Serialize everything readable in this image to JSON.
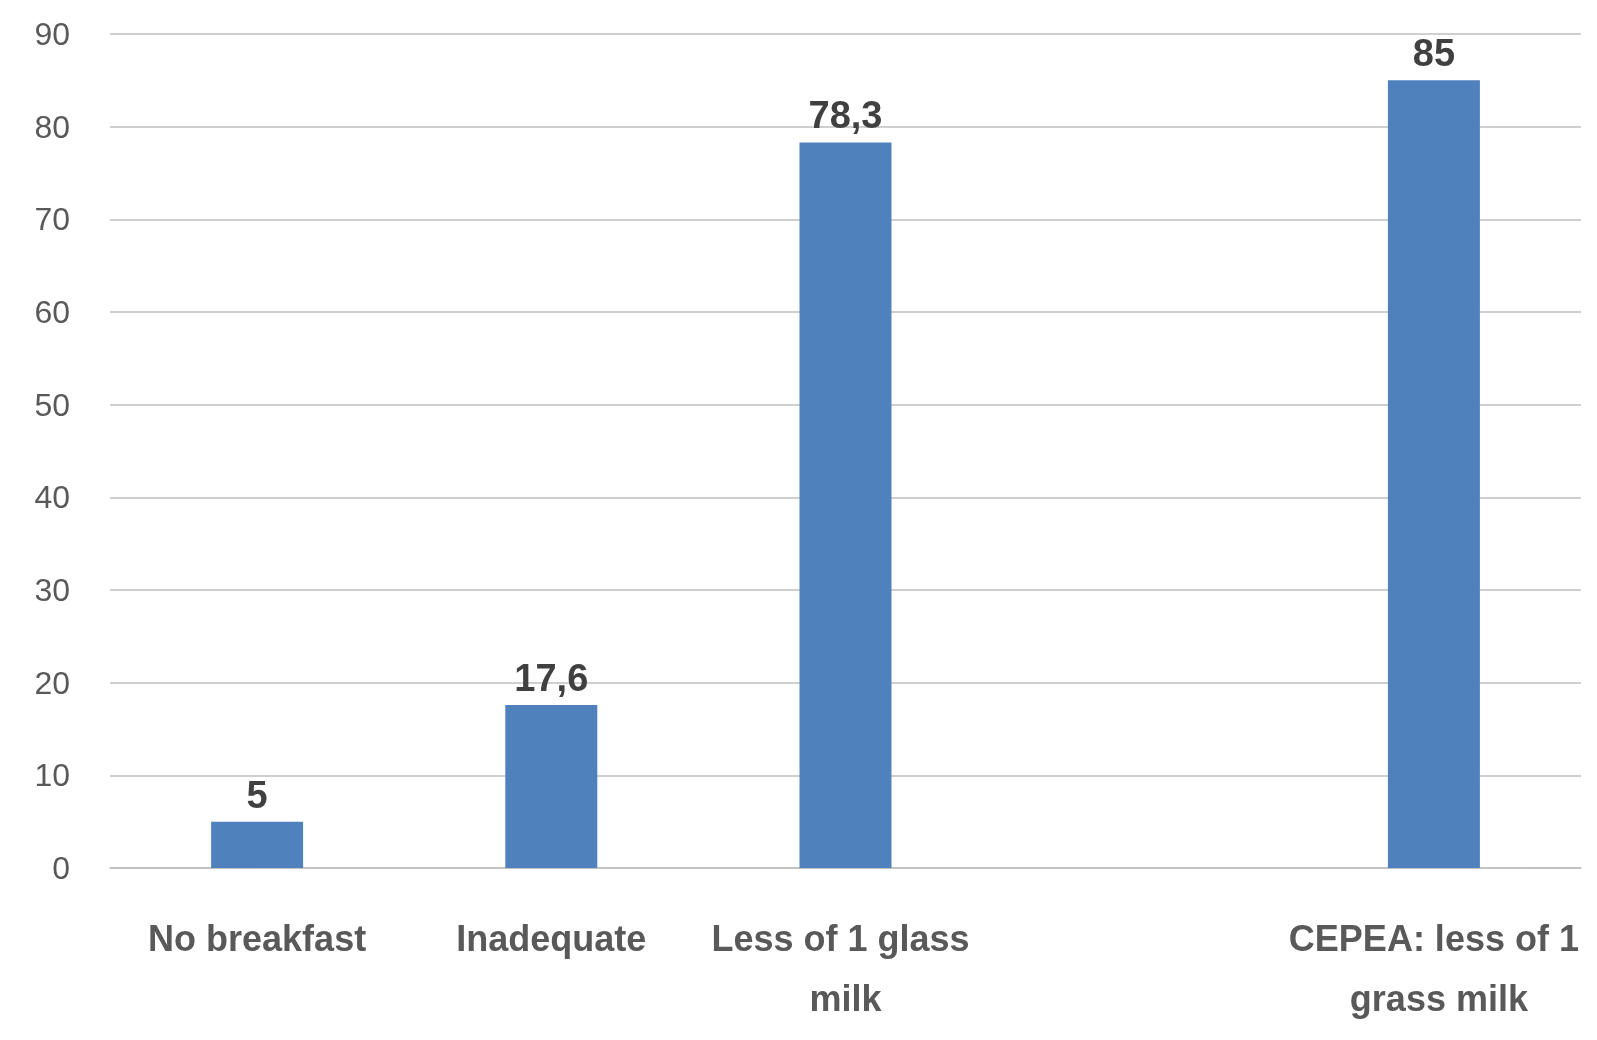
{
  "chart_data": {
    "type": "bar",
    "categories": [
      "No breakfast",
      "Inadequate",
      "Less of 1 glass milk",
      null,
      "CEPEA: less of 1 grass milk"
    ],
    "values": [
      5,
      17.6,
      78.3,
      null,
      85
    ],
    "color": "#4f81bd",
    "value_labels": [
      "5",
      "17,6",
      "78,3",
      null,
      "85"
    ],
    "ylim": [
      0,
      90
    ],
    "yticks": [
      0,
      10,
      20,
      30,
      40,
      50,
      60,
      70,
      80,
      90
    ],
    "grid": "y"
  }
}
